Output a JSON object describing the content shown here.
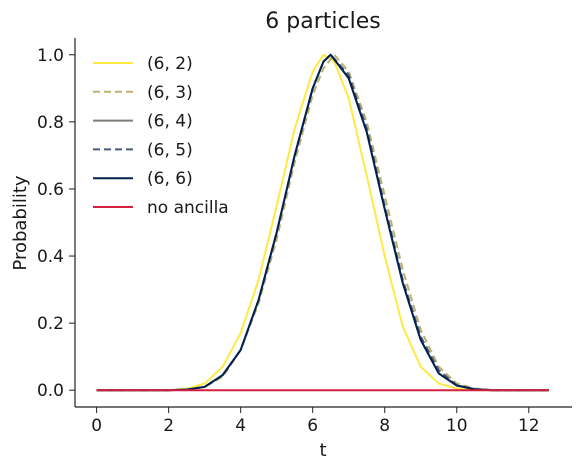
{
  "chart_data": {
    "type": "line",
    "title": "6 particles",
    "xlabel": "t",
    "ylabel": "Probability",
    "xlim": [
      -0.6,
      13.2
    ],
    "ylim": [
      -0.05,
      1.05
    ],
    "xticks": [
      "0",
      "2",
      "4",
      "6",
      "8",
      "10",
      "12"
    ],
    "yticks": [
      "0.0",
      "0.2",
      "0.4",
      "0.6",
      "0.8",
      "1.0"
    ],
    "grid": false,
    "legend_position": "top-left",
    "series": [
      {
        "name": "(6, 2)",
        "color": "#ffe945",
        "dash": "solid",
        "x": [
          0,
          1,
          2,
          2.5,
          3,
          3.5,
          4,
          4.5,
          5,
          5.5,
          6,
          6.3,
          6.6,
          7,
          7.5,
          8,
          8.5,
          9,
          9.5,
          10,
          10.5,
          11,
          12,
          12.56
        ],
        "y": [
          0.0,
          0.0,
          0.0,
          0.004,
          0.02,
          0.07,
          0.17,
          0.33,
          0.55,
          0.78,
          0.95,
          1.0,
          0.98,
          0.87,
          0.64,
          0.4,
          0.19,
          0.07,
          0.02,
          0.005,
          0.001,
          0.0,
          0.0,
          0.0
        ]
      },
      {
        "name": "(6, 3)",
        "color": "#bdaf6f",
        "dash": "dashed",
        "x": [
          0,
          1,
          2,
          2.5,
          3,
          3.5,
          4,
          4.5,
          5,
          5.5,
          6,
          6.3,
          6.6,
          7,
          7.5,
          8,
          8.5,
          9,
          9.5,
          10,
          10.5,
          11,
          12,
          12.56
        ],
        "y": [
          0.0,
          0.0,
          0.0,
          0.002,
          0.01,
          0.04,
          0.12,
          0.26,
          0.45,
          0.68,
          0.88,
          0.96,
          1.0,
          0.95,
          0.8,
          0.58,
          0.36,
          0.18,
          0.07,
          0.02,
          0.005,
          0.001,
          0.0,
          0.0
        ]
      },
      {
        "name": "(6, 4)",
        "color": "#7f7c76",
        "dash": "solid",
        "x": [
          0,
          1,
          2,
          2.5,
          3,
          3.5,
          4,
          4.5,
          5,
          5.5,
          6,
          6.3,
          6.5,
          7,
          7.5,
          8,
          8.5,
          9,
          9.5,
          10,
          10.5,
          11,
          12,
          12.56
        ],
        "y": [
          0.0,
          0.0,
          0.0,
          0.002,
          0.01,
          0.045,
          0.12,
          0.27,
          0.47,
          0.7,
          0.9,
          0.98,
          1.0,
          0.93,
          0.77,
          0.54,
          0.32,
          0.15,
          0.05,
          0.014,
          0.003,
          0.0,
          0.0,
          0.0
        ]
      },
      {
        "name": "(6, 5)",
        "color": "#4a5a7c",
        "dash": "dashed",
        "x": [
          0,
          1,
          2,
          2.5,
          3,
          3.5,
          4,
          4.5,
          5,
          5.5,
          6,
          6.3,
          6.5,
          7,
          7.5,
          8,
          8.5,
          9,
          9.5,
          10,
          10.5,
          11,
          12,
          12.56
        ],
        "y": [
          0.0,
          0.0,
          0.0,
          0.002,
          0.01,
          0.045,
          0.12,
          0.27,
          0.47,
          0.7,
          0.9,
          0.98,
          1.0,
          0.94,
          0.78,
          0.55,
          0.33,
          0.16,
          0.06,
          0.015,
          0.003,
          0.0,
          0.0,
          0.0
        ]
      },
      {
        "name": "(6, 6)",
        "color": "#00224e",
        "dash": "solid",
        "x": [
          0,
          1,
          2,
          2.5,
          3,
          3.5,
          4,
          4.5,
          5,
          5.5,
          6,
          6.3,
          6.5,
          7,
          7.5,
          8,
          8.5,
          9,
          9.5,
          10,
          10.5,
          11,
          12,
          12.56
        ],
        "y": [
          0.0,
          0.0,
          0.0,
          0.002,
          0.01,
          0.045,
          0.12,
          0.27,
          0.47,
          0.7,
          0.9,
          0.98,
          1.0,
          0.93,
          0.77,
          0.54,
          0.32,
          0.15,
          0.05,
          0.014,
          0.003,
          0.0,
          0.0,
          0.0
        ]
      },
      {
        "name": "no ancilla",
        "color": "#d62040",
        "dash": "solid",
        "x": [
          0,
          2,
          4,
          6,
          8,
          10,
          12,
          12.56
        ],
        "y": [
          0.0,
          0.0,
          0.0,
          0.0,
          0.0,
          0.0,
          0.0,
          0.0
        ]
      }
    ]
  }
}
